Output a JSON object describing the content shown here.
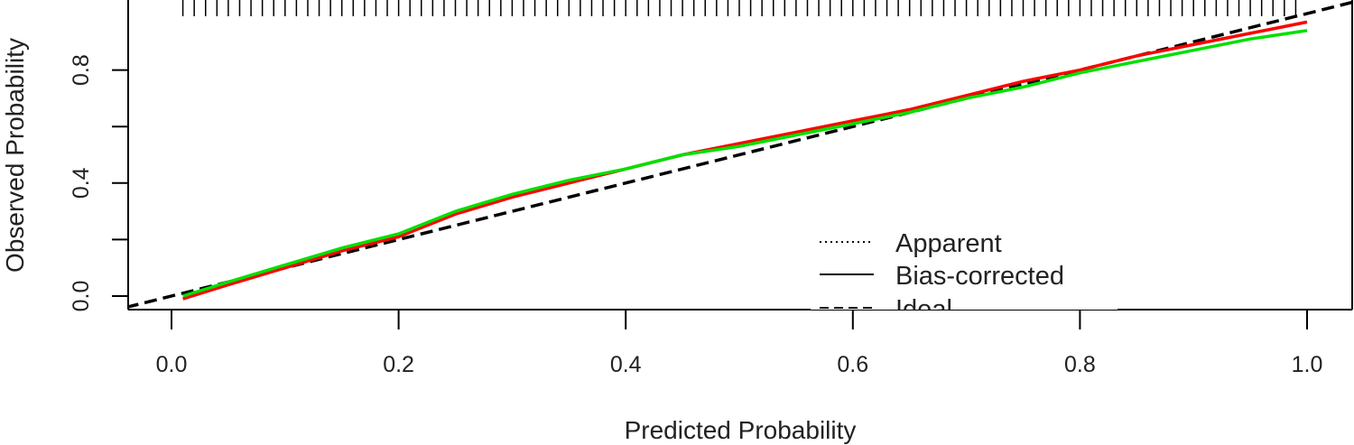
{
  "chart_data": {
    "type": "line",
    "title": "",
    "xlabel": "Predicted Probability",
    "ylabel": "Observed Probability",
    "xlim": [
      -0.04,
      1.04
    ],
    "ylim": [
      -0.05,
      1.05
    ],
    "x_ticks": [
      0.0,
      0.2,
      0.4,
      0.6,
      0.8,
      1.0
    ],
    "x_tick_labels": [
      "0.0",
      "0.2",
      "0.4",
      "0.6",
      "0.8",
      "1.0"
    ],
    "y_ticks": [
      0.0,
      0.2,
      0.4,
      0.6,
      0.8
    ],
    "y_tick_labels": [
      "0.0",
      "0.4",
      "0.8"
    ],
    "grid": false,
    "legend": {
      "position": "bottom-right",
      "entries": [
        {
          "label": "Apparent",
          "linestyle": "dotted"
        },
        {
          "label": "Bias-corrected",
          "linestyle": "solid"
        },
        {
          "label": "Ideal",
          "linestyle": "dashed"
        }
      ]
    },
    "rug_x": [
      0.01,
      0.02,
      0.03,
      0.04,
      0.05,
      0.06,
      0.07,
      0.08,
      0.09,
      0.1,
      0.11,
      0.12,
      0.13,
      0.14,
      0.15,
      0.16,
      0.17,
      0.18,
      0.19,
      0.2,
      0.21,
      0.22,
      0.23,
      0.24,
      0.25,
      0.26,
      0.27,
      0.28,
      0.29,
      0.3,
      0.31,
      0.32,
      0.33,
      0.34,
      0.35,
      0.36,
      0.37,
      0.38,
      0.39,
      0.4,
      0.41,
      0.42,
      0.43,
      0.44,
      0.45,
      0.46,
      0.47,
      0.48,
      0.49,
      0.5,
      0.51,
      0.52,
      0.53,
      0.54,
      0.55,
      0.56,
      0.57,
      0.58,
      0.59,
      0.6,
      0.61,
      0.62,
      0.63,
      0.64,
      0.65,
      0.66,
      0.67,
      0.68,
      0.69,
      0.7,
      0.71,
      0.72,
      0.73,
      0.74,
      0.75,
      0.76,
      0.77,
      0.78,
      0.79,
      0.8,
      0.81,
      0.82,
      0.83,
      0.84,
      0.85,
      0.86,
      0.87,
      0.88,
      0.89,
      0.9,
      0.91,
      0.92,
      0.93,
      0.94,
      0.95,
      0.96,
      0.97,
      0.98,
      0.99
    ],
    "series": [
      {
        "linestyle": "dashed",
        "color": "#000000",
        "x": [
          -0.04,
          1.04
        ],
        "y": [
          -0.04,
          1.04
        ]
      },
      {
        "linestyle": "solid",
        "color": "#ff0000",
        "x": [
          0.01,
          0.05,
          0.1,
          0.15,
          0.2,
          0.25,
          0.3,
          0.35,
          0.4,
          0.45,
          0.5,
          0.55,
          0.6,
          0.65,
          0.7,
          0.75,
          0.8,
          0.85,
          0.9,
          0.95,
          1.0
        ],
        "y": [
          -0.01,
          0.04,
          0.1,
          0.16,
          0.21,
          0.29,
          0.35,
          0.4,
          0.45,
          0.5,
          0.54,
          0.58,
          0.62,
          0.66,
          0.71,
          0.76,
          0.8,
          0.85,
          0.89,
          0.93,
          0.97
        ]
      },
      {
        "linestyle": "solid",
        "color": "#00e000",
        "x": [
          0.01,
          0.05,
          0.1,
          0.15,
          0.2,
          0.25,
          0.3,
          0.35,
          0.4,
          0.45,
          0.5,
          0.55,
          0.6,
          0.65,
          0.7,
          0.75,
          0.8,
          0.85,
          0.9,
          0.95,
          1.0
        ],
        "y": [
          0.0,
          0.05,
          0.11,
          0.17,
          0.22,
          0.3,
          0.36,
          0.41,
          0.45,
          0.5,
          0.53,
          0.57,
          0.61,
          0.65,
          0.7,
          0.74,
          0.79,
          0.83,
          0.87,
          0.91,
          0.94
        ]
      }
    ]
  }
}
